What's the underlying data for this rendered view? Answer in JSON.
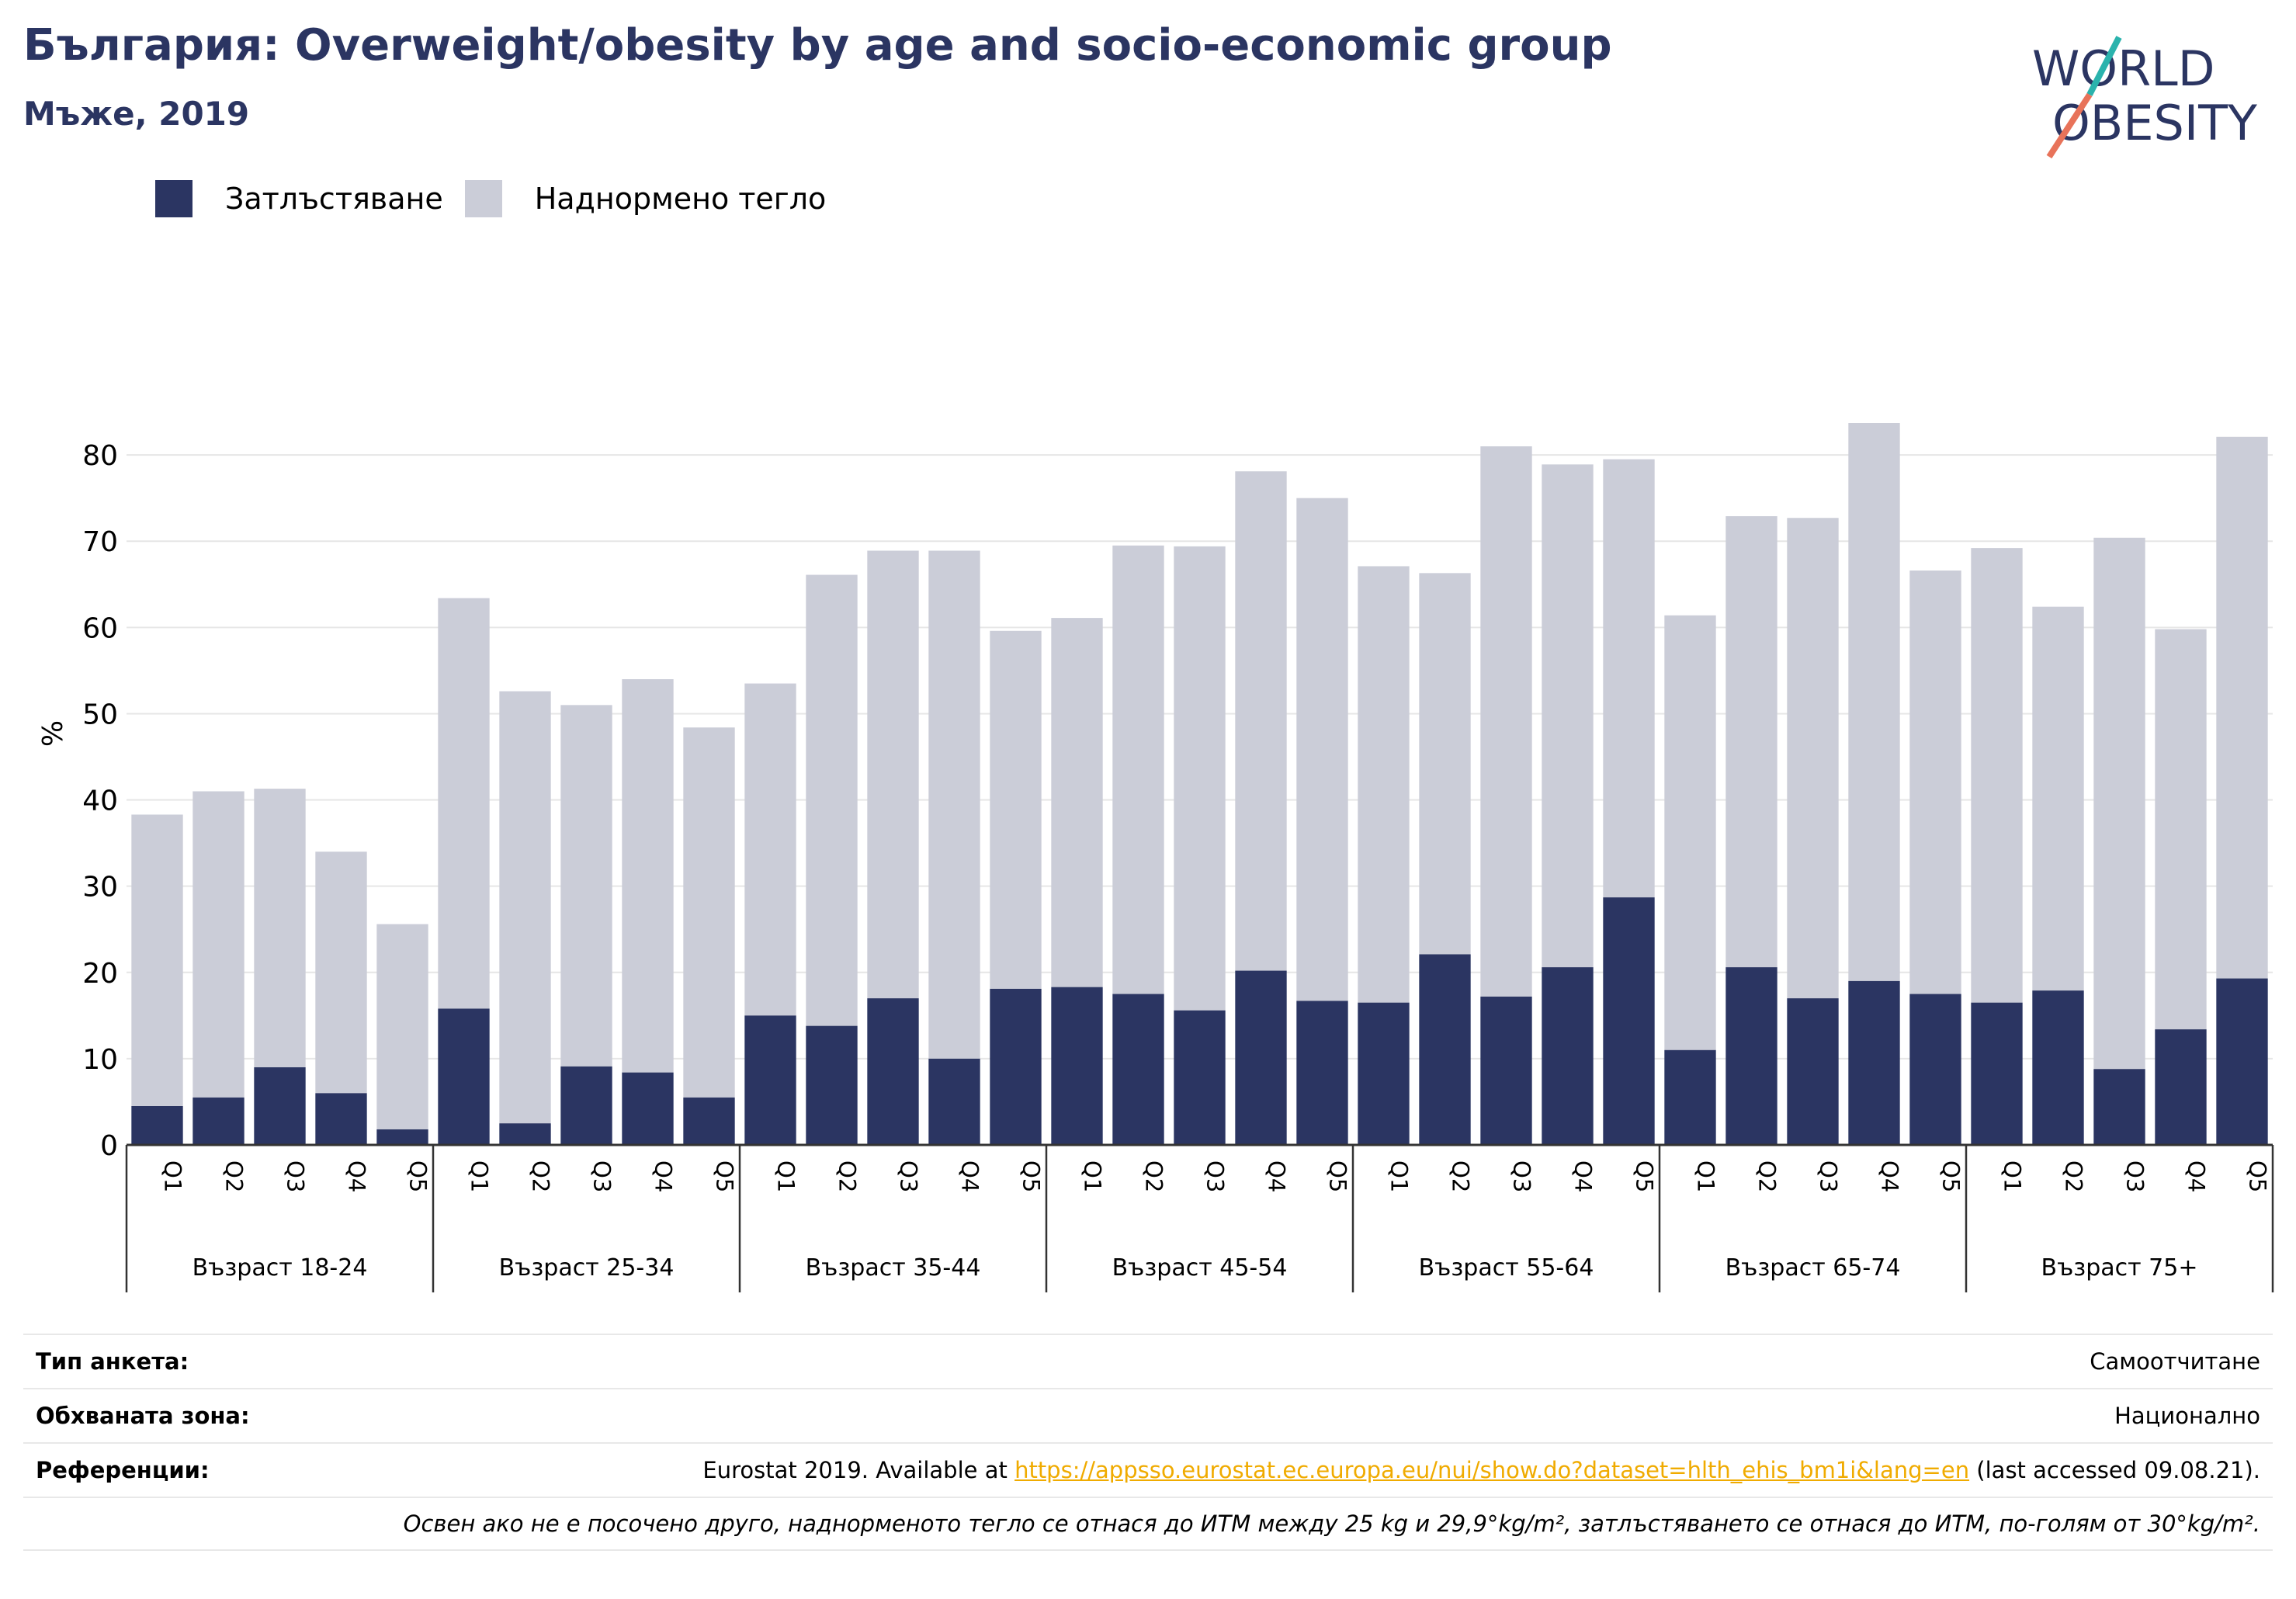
{
  "header": {
    "title": "България: Overweight/obesity by age and socio-economic group",
    "subtitle": "Мъже, 2019"
  },
  "logo": {
    "line1": "WORLD",
    "line2": "OBESITY"
  },
  "legend": [
    {
      "label": "Затлъстяване",
      "color": "#2b3562"
    },
    {
      "label": "Наднормено тегло",
      "color": "#cbcdd8"
    }
  ],
  "chart_data": {
    "type": "bar",
    "stacked": true,
    "ylabel": "%",
    "ylim": [
      0,
      90
    ],
    "yticks": [
      0,
      10,
      20,
      30,
      40,
      50,
      60,
      70,
      80
    ],
    "grid": true,
    "legend_position": "top-left",
    "groups": [
      {
        "label": "Възраст 18-24",
        "categories": [
          "Q1",
          "Q2",
          "Q3",
          "Q4",
          "Q5"
        ],
        "obesity": [
          4.5,
          5.5,
          9.0,
          6.0,
          1.8
        ],
        "total": [
          38.3,
          41.0,
          41.3,
          34.0,
          25.6
        ]
      },
      {
        "label": "Възраст 25-34",
        "categories": [
          "Q1",
          "Q2",
          "Q3",
          "Q4",
          "Q5"
        ],
        "obesity": [
          15.8,
          2.5,
          9.1,
          8.4,
          5.5
        ],
        "total": [
          63.4,
          52.6,
          51.0,
          54.0,
          48.4
        ]
      },
      {
        "label": "Възраст 35-44",
        "categories": [
          "Q1",
          "Q2",
          "Q3",
          "Q4",
          "Q5"
        ],
        "obesity": [
          15.0,
          13.8,
          17.0,
          10.0,
          18.1
        ],
        "total": [
          53.5,
          66.1,
          68.9,
          68.9,
          59.6
        ]
      },
      {
        "label": "Възраст 45-54",
        "categories": [
          "Q1",
          "Q2",
          "Q3",
          "Q4",
          "Q5"
        ],
        "obesity": [
          18.3,
          17.5,
          15.6,
          20.2,
          16.7
        ],
        "total": [
          61.1,
          69.5,
          69.4,
          78.1,
          75.0
        ]
      },
      {
        "label": "Възраст 55-64",
        "categories": [
          "Q1",
          "Q2",
          "Q3",
          "Q4",
          "Q5"
        ],
        "obesity": [
          16.5,
          22.1,
          17.2,
          20.6,
          28.7
        ],
        "total": [
          67.1,
          66.3,
          81.0,
          78.9,
          79.5
        ]
      },
      {
        "label": "Възраст 65-74",
        "categories": [
          "Q1",
          "Q2",
          "Q3",
          "Q4",
          "Q5"
        ],
        "obesity": [
          11.0,
          20.6,
          17.0,
          19.0,
          17.5
        ],
        "total": [
          61.4,
          72.9,
          72.7,
          83.7,
          66.6
        ]
      },
      {
        "label": "Възраст 75+",
        "categories": [
          "Q1",
          "Q2",
          "Q3",
          "Q4",
          "Q5"
        ],
        "obesity": [
          16.5,
          17.9,
          8.8,
          13.4,
          19.3
        ],
        "total": [
          69.2,
          62.4,
          70.4,
          59.8,
          82.1
        ]
      }
    ],
    "colors": {
      "obesity": "#2b3562",
      "overweight": "#cbcdd8"
    }
  },
  "footer": {
    "survey_type": {
      "label": "Тип анкета:",
      "value": "Самоотчитане"
    },
    "coverage": {
      "label": "Обхваната зона:",
      "value": "Национално"
    },
    "references": {
      "label": "Референции:",
      "prefix": "Eurostat 2019. Available at ",
      "link": "https://appsso.eurostat.ec.europa.eu/nui/show.do?dataset=hlth_ehis_bm1i&lang=en",
      "suffix": " (last accessed 09.08.21)."
    },
    "note": "Освен ако не е посочено друго, наднорменото тегло се отнася до ИТМ между 25 kg и 29,9°kg/m², затлъстяването се отнася до ИТМ, по-голям от 30°kg/m²."
  }
}
